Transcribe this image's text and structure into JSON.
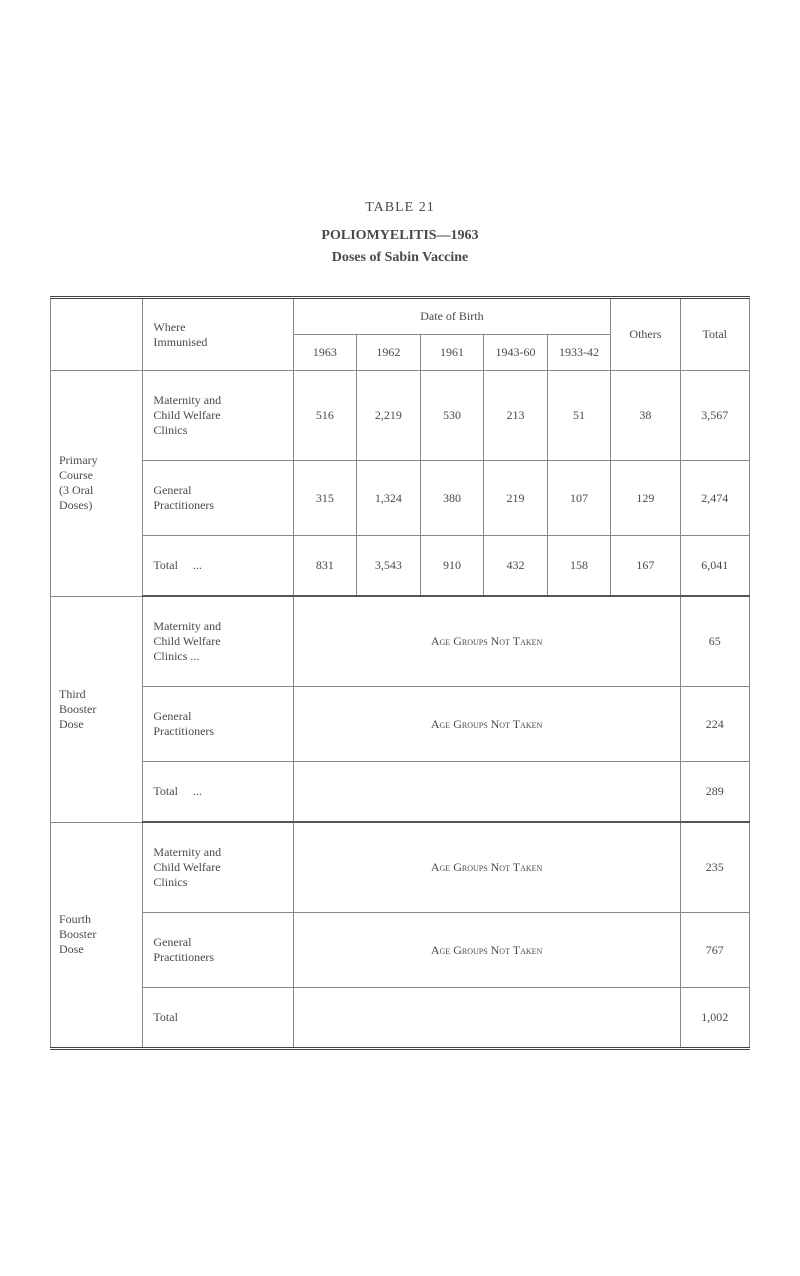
{
  "header": {
    "table_number": "TABLE 21",
    "title": "POLIOMYELITIS—1963",
    "subtitle": "Doses of Sabin Vaccine"
  },
  "columns": {
    "where_label": "Where\nImmunised",
    "date_of_birth": "Date of Birth",
    "years": [
      "1963",
      "1962",
      "1961",
      "1943-60",
      "1933-42"
    ],
    "others": "Others",
    "total": "Total"
  },
  "sections": [
    {
      "category": "Primary\nCourse\n(3 Oral\nDoses)",
      "rows": [
        {
          "where": "Maternity and\nChild Welfare\nClinics",
          "cells": [
            "516",
            "2,219",
            "530",
            "213",
            "51",
            "38",
            "3,567"
          ]
        },
        {
          "where": "General\nPractitioners",
          "cells": [
            "315",
            "1,324",
            "380",
            "219",
            "107",
            "129",
            "2,474"
          ]
        },
        {
          "where": "Total     ...",
          "cells": [
            "831",
            "3,543",
            "910",
            "432",
            "158",
            "167",
            "6,041"
          ]
        }
      ]
    },
    {
      "category": "Third\nBooster\nDose",
      "age_not_taken": "Age Groups Not Taken",
      "rows": [
        {
          "where": "Maternity and\nChild Welfare\nClinics       ...",
          "total": "65"
        },
        {
          "where": "General\nPractitioners",
          "total": "224"
        },
        {
          "where": "Total     ...",
          "total": "289"
        }
      ]
    },
    {
      "category": "Fourth\nBooster\nDose",
      "age_not_taken": "Age Groups Not Taken",
      "rows": [
        {
          "where": "Maternity and\nChild Welfare\nClinics",
          "total": "235"
        },
        {
          "where": "General\nPractitioners",
          "total": "767"
        },
        {
          "where": "Total",
          "total": "1,002"
        }
      ]
    }
  ]
}
